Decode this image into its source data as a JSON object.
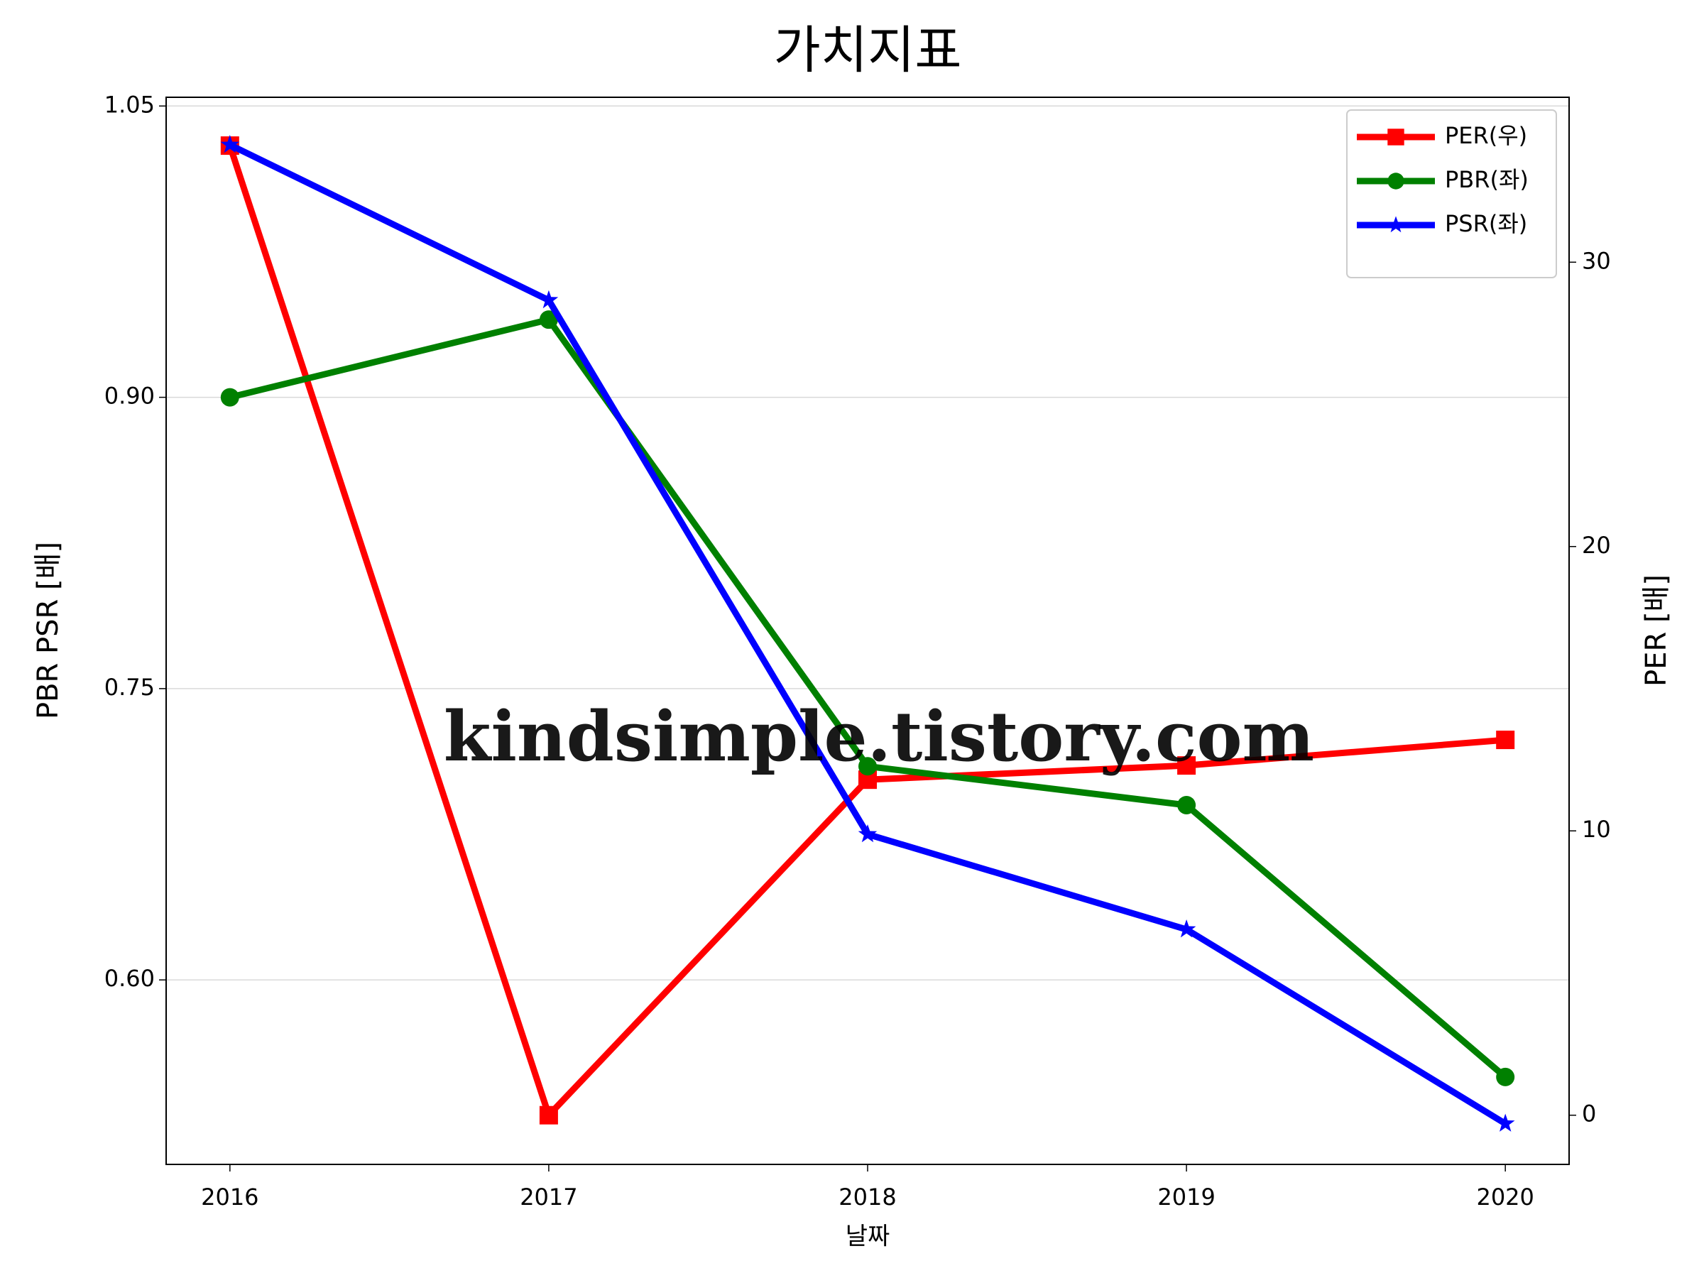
{
  "chart_data": {
    "type": "line",
    "title": "가치지표",
    "xlabel": "날짜",
    "ylabel": "PBR PSR [배]",
    "y2label": "PER [배]",
    "ylabel_color": "#008000",
    "y2label_color": "#ff0000",
    "annotation": "kindsimple.tistory.com",
    "x": [
      2016,
      2017,
      2018,
      2019,
      2020
    ],
    "xlim": [
      2015.8,
      2020.2
    ],
    "xticks": [
      2016,
      2017,
      2018,
      2019,
      2020
    ],
    "ylim": [
      0.505,
      1.0545
    ],
    "yticks": [
      {
        "value": 0.6,
        "label": "0.60"
      },
      0.75,
      {
        "value": 0.9,
        "label": "0.90"
      },
      1.05
    ],
    "y2lim": [
      -1.73,
      35.8
    ],
    "y2ticks": [
      0,
      10,
      20,
      30
    ],
    "grid": true,
    "legend": "upper right",
    "series": [
      {
        "name": "PER(우)",
        "color": "#ff0000",
        "marker": "square",
        "axis": "y2",
        "values": [
          34.1,
          0,
          11.8,
          12.3,
          13.2
        ]
      },
      {
        "name": "PBR(좌)",
        "color": "#008000",
        "marker": "circle",
        "values": [
          0.9,
          0.94,
          0.71,
          0.69,
          0.55
        ]
      },
      {
        "name": "PSR(좌)",
        "color": "#0000ff",
        "marker": "star",
        "values": [
          1.03,
          0.95,
          0.675,
          0.626,
          0.526
        ]
      }
    ]
  }
}
